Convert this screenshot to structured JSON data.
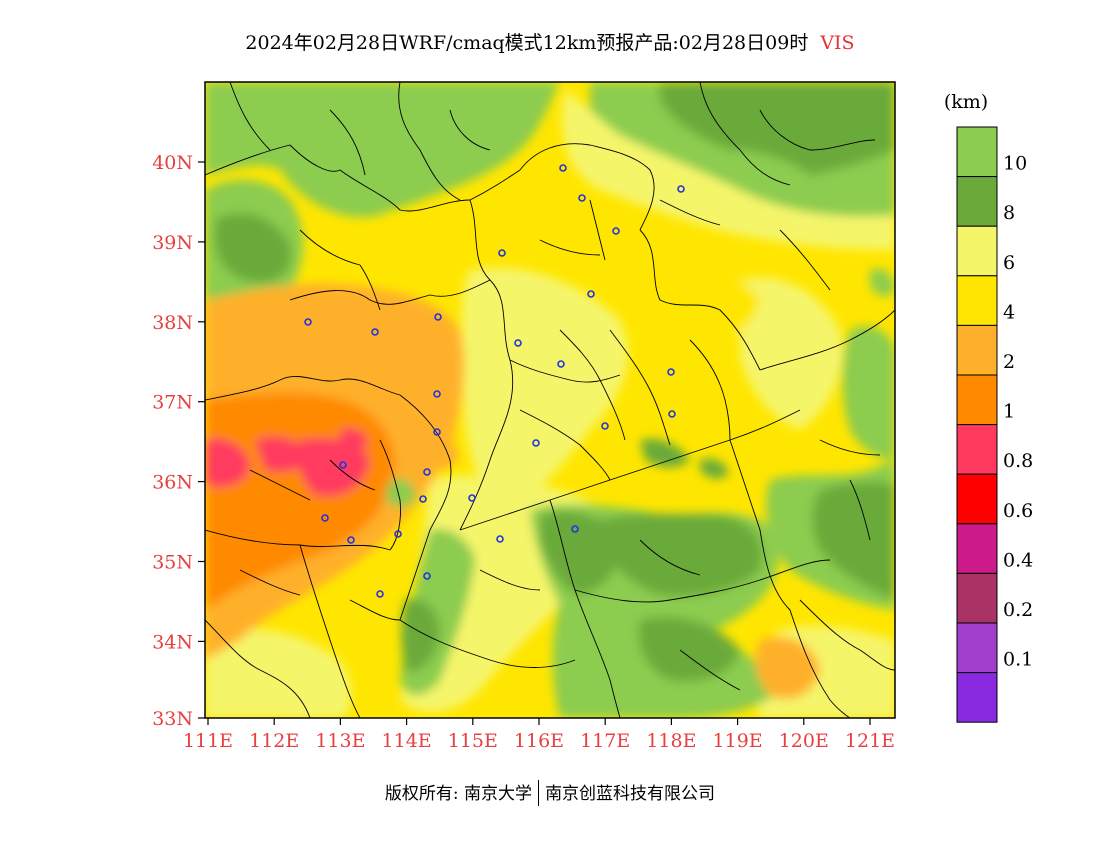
{
  "title": {
    "text": "2024年02月28日WRF/cmaq模式12km预报产品:02月28日09时",
    "variable": "VIS",
    "variable_color": "#e63232"
  },
  "axes": {
    "lat_labels": [
      "40N",
      "39N",
      "38N",
      "37N",
      "36N",
      "35N",
      "34N",
      "33N"
    ],
    "lon_labels": [
      "111E",
      "112E",
      "113E",
      "114E",
      "115E",
      "116E",
      "117E",
      "118E",
      "119E",
      "120E",
      "121E"
    ],
    "label_color": "#e64040"
  },
  "colorbar": {
    "unit": "(km)",
    "labels": [
      "10",
      "8",
      "6",
      "4",
      "2",
      "1",
      "0.8",
      "0.6",
      "0.4",
      "0.2",
      "0.1"
    ],
    "colors": [
      "#8ccc50",
      "#6aaa3a",
      "#f5f56a",
      "#ffe600",
      "#ffb02a",
      "#ff8a00",
      "#ff3a5e",
      "#ff0000",
      "#cc1a8a",
      "#aa3366",
      "#a040cc",
      "#8a2ae0"
    ]
  },
  "stations_count_note": "",
  "copyright": {
    "left": "版权所有: 南京大学",
    "right": "南京创蓝科技有限公司"
  }
}
